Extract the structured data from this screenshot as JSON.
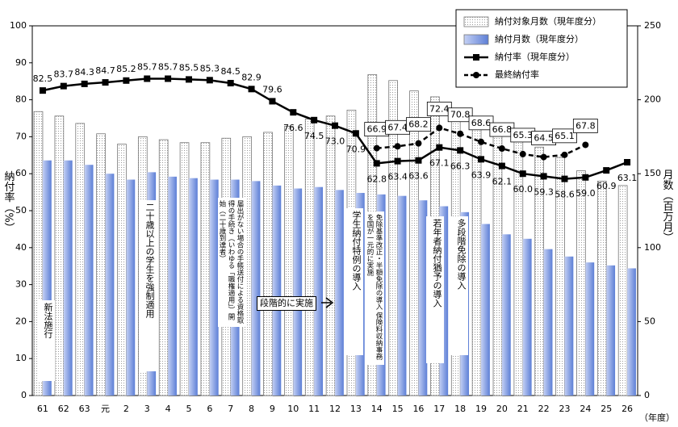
{
  "chart_data": {
    "type": "combo",
    "categories": [
      "61",
      "62",
      "63",
      "元",
      "2",
      "3",
      "4",
      "5",
      "6",
      "7",
      "8",
      "9",
      "10",
      "11",
      "12",
      "13",
      "14",
      "15",
      "16",
      "17",
      "18",
      "19",
      "20",
      "21",
      "22",
      "23",
      "24",
      "25",
      "26"
    ],
    "series": [
      {
        "name": "納付対象月数（現年度分）",
        "type": "bar",
        "axis": "y2",
        "color": "#ffffff",
        "values": [
          192,
          189,
          184,
          177,
          170,
          175,
          173,
          171,
          171,
          174,
          175,
          178,
          182,
          187,
          189,
          193,
          217,
          213,
          206,
          202,
          187,
          182,
          178,
          174,
          168,
          161,
          152,
          145,
          142
        ]
      },
      {
        "name": "納付月数（現年度分）",
        "type": "bar",
        "axis": "y2",
        "color": "#7f9be0",
        "values": [
          159,
          159,
          156,
          150,
          146,
          151,
          148,
          147,
          146,
          146,
          145,
          142,
          140,
          141,
          139,
          137,
          136,
          135,
          132,
          128,
          124,
          116,
          109,
          106,
          99,
          94,
          90,
          88,
          86
        ]
      },
      {
        "name": "納付率（現年度分）",
        "type": "line",
        "color": "#000000",
        "values": [
          82.5,
          83.7,
          84.3,
          84.7,
          85.2,
          85.7,
          85.7,
          85.5,
          85.3,
          84.5,
          82.9,
          79.6,
          76.6,
          74.5,
          73.0,
          70.9,
          62.8,
          63.4,
          63.6,
          67.1,
          66.3,
          63.9,
          62.1,
          60.0,
          59.3,
          58.6,
          59.0,
          60.9,
          63.1
        ],
        "value_labels": [
          "82.5",
          "83.7",
          "84.3",
          "84.7",
          "85.2",
          "85.7",
          "85.7",
          "85.5",
          "85.3",
          "84.5",
          "82.9",
          "79.6",
          "76.6",
          "74.5",
          "73.0",
          "70.9",
          "62.8",
          "63.4",
          "63.6",
          "67.1",
          "66.3",
          "63.9",
          "62.1",
          "60.0",
          "59.3",
          "58.6",
          "59.0",
          "60.9",
          "63.1"
        ]
      },
      {
        "name": "最終納付率",
        "type": "line",
        "color": "#000000",
        "dashed": true,
        "values": [
          null,
          null,
          null,
          null,
          null,
          null,
          null,
          null,
          null,
          null,
          null,
          null,
          null,
          null,
          null,
          null,
          66.9,
          67.4,
          68.2,
          72.4,
          70.8,
          68.6,
          66.8,
          65.3,
          64.5,
          65.1,
          67.8,
          null,
          null
        ]
      }
    ],
    "ylabel": "納付率（%）",
    "y2label": "月数（百万月）",
    "xlabel": "（年度）",
    "ylim": [
      0,
      100
    ],
    "yticks": [
      0,
      10,
      20,
      30,
      40,
      50,
      60,
      70,
      80,
      90,
      100
    ],
    "y2lim": [
      0,
      250
    ],
    "y2ticks": [
      0,
      50,
      100,
      150,
      200,
      250
    ],
    "legend": "upper right",
    "annotations": [
      {
        "text": "新法施行"
      },
      {
        "text": "二十歳以上の学生を強制適用"
      },
      {
        "text": "届出がない場合の手帳送付による資格取得の手続き（いわゆる「職権適用」）開始（二十歳到達者）"
      },
      {
        "text": "段階的に実施"
      },
      {
        "text": "学生納付特例の導入"
      },
      {
        "text": "免除基準改正・半額免除の導入 保険料収納事務を国が一元的に実施"
      },
      {
        "text": "若年者納付猶予の導入"
      },
      {
        "text": "多段階免除の導入"
      }
    ]
  }
}
